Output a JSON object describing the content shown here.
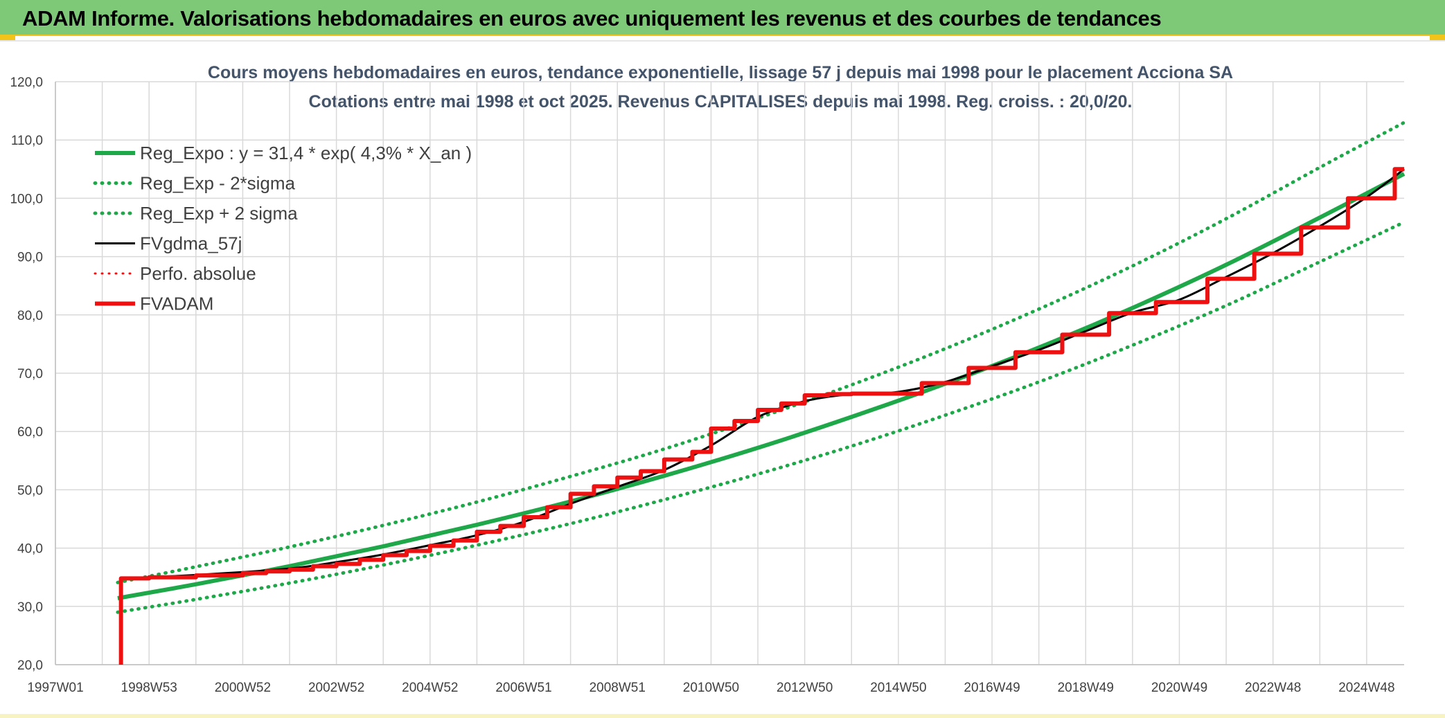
{
  "header": {
    "title": "ADAM Informe. Valorisations hebdomadaires en euros avec uniquement les revenus et des courbes de tendances"
  },
  "theme": {
    "banner": "#7ec978",
    "accent": "#f2c318",
    "green": "#1fa84a",
    "red": "#ee1111",
    "black": "#000000",
    "grid": "#d9d9d9"
  },
  "chart_data": {
    "type": "line",
    "title": "Cours moyens hebdomadaires en euros, tendance exponentielle, lissage 57 j depuis mai 1998 pour le placement Acciona SA",
    "subtitle": "Cotations entre mai 1998 et oct 2025. Revenus CAPITALISES depuis mai 1998. Reg. croiss. : 20,0/20.",
    "xlabel": "",
    "ylabel": "",
    "ylim": [
      20,
      120
    ],
    "yticks": [
      "20,0",
      "30,0",
      "40,0",
      "50,0",
      "60,0",
      "70,0",
      "80,0",
      "90,0",
      "100,0",
      "110,0",
      "120,0"
    ],
    "xlim": [
      1997.0,
      2025.8
    ],
    "xticks": [
      {
        "label": "1997W01",
        "x": 1997.0
      },
      {
        "label": "1998W53",
        "x": 1999.0
      },
      {
        "label": "2000W52",
        "x": 2001.0
      },
      {
        "label": "2002W52",
        "x": 2003.0
      },
      {
        "label": "2004W52",
        "x": 2005.0
      },
      {
        "label": "2006W51",
        "x": 2007.0
      },
      {
        "label": "2008W51",
        "x": 2009.0
      },
      {
        "label": "2010W50",
        "x": 2011.0
      },
      {
        "label": "2012W50",
        "x": 2013.0
      },
      {
        "label": "2014W50",
        "x": 2015.0
      },
      {
        "label": "2016W49",
        "x": 2017.0
      },
      {
        "label": "2018W49",
        "x": 2019.0
      },
      {
        "label": "2020W49",
        "x": 2021.0
      },
      {
        "label": "2022W48",
        "x": 2023.0
      },
      {
        "label": "2024W48",
        "x": 2025.0
      }
    ],
    "grid": true,
    "legend_position": "top-left",
    "series": [
      {
        "name": "Reg_Expo : y = 31,4 * exp( 4,3% *  X_an )",
        "style": "solid",
        "color": "#1fa84a",
        "width": 6,
        "x": [
          1998.33,
          2000.0,
          2002.0,
          2004.0,
          2006.0,
          2008.0,
          2010.0,
          2012.0,
          2014.0,
          2016.0,
          2018.0,
          2020.0,
          2022.0,
          2024.0,
          2025.8
        ],
        "y": [
          31.4,
          33.8,
          36.9,
          40.3,
          44.0,
          48.0,
          52.4,
          57.2,
          62.5,
          68.2,
          74.4,
          81.2,
          88.6,
          96.7,
          104.2
        ]
      },
      {
        "name": "Reg_Exp - 2*sigma",
        "style": "dotted",
        "color": "#1fa84a",
        "width": 5,
        "x": [
          1998.33,
          2000.0,
          2002.0,
          2004.0,
          2006.0,
          2008.0,
          2010.0,
          2012.0,
          2014.0,
          2016.0,
          2018.0,
          2020.0,
          2022.0,
          2024.0,
          2025.8
        ],
        "y": [
          29.0,
          31.2,
          34.0,
          37.1,
          40.5,
          44.2,
          48.3,
          52.7,
          57.5,
          62.8,
          68.5,
          74.8,
          81.6,
          89.1,
          95.9
        ]
      },
      {
        "name": "Reg_Exp + 2 sigma",
        "style": "dotted",
        "color": "#1fa84a",
        "width": 5,
        "x": [
          1998.33,
          2000.0,
          2002.0,
          2004.0,
          2006.0,
          2008.0,
          2010.0,
          2012.0,
          2014.0,
          2016.0,
          2018.0,
          2020.0,
          2022.0,
          2024.0,
          2025.8
        ],
        "y": [
          34.1,
          36.8,
          40.2,
          43.9,
          47.9,
          52.3,
          57.0,
          62.3,
          68.0,
          74.2,
          81.0,
          88.4,
          96.5,
          105.3,
          113.0
        ]
      },
      {
        "name": "FVgdma_57j",
        "style": "solid",
        "color": "#000000",
        "width": 3,
        "x": [
          1998.4,
          2000.0,
          2002.0,
          2003.0,
          2004.0,
          2005.0,
          2006.0,
          2007.0,
          2008.0,
          2009.0,
          2010.0,
          2011.0,
          2012.0,
          2013.0,
          2014.0,
          2015.0,
          2016.0,
          2017.0,
          2018.0,
          2019.0,
          2020.0,
          2021.0,
          2022.0,
          2023.0,
          2024.0,
          2025.0,
          2025.8
        ],
        "y": [
          34.8,
          35.4,
          36.5,
          37.6,
          38.9,
          40.5,
          42.2,
          44.5,
          47.6,
          50.5,
          53.4,
          57.6,
          62.5,
          65.2,
          66.4,
          66.8,
          68.5,
          71.2,
          74.0,
          77.2,
          80.4,
          82.6,
          86.5,
          90.6,
          95.2,
          100.2,
          105.0
        ]
      },
      {
        "name": "Perfo. absolue",
        "style": "dotted",
        "color": "#ee1111",
        "width": 3,
        "x": [],
        "y": []
      },
      {
        "name": "FVADAM",
        "style": "step",
        "color": "#ee1111",
        "width": 6,
        "x": [
          1998.4,
          1998.4,
          1999.0,
          2000.0,
          2001.0,
          2001.5,
          2002.0,
          2002.5,
          2003.0,
          2003.5,
          2004.0,
          2004.5,
          2005.0,
          2005.5,
          2006.0,
          2006.5,
          2007.0,
          2007.5,
          2008.0,
          2008.5,
          2009.0,
          2009.5,
          2010.0,
          2010.6,
          2011.0,
          2011.5,
          2012.0,
          2012.5,
          2013.0,
          2013.5,
          2014.0,
          2015.5,
          2016.5,
          2017.5,
          2018.5,
          2019.5,
          2020.5,
          2021.6,
          2022.6,
          2023.6,
          2024.6,
          2025.6,
          2025.8
        ],
        "y": [
          20.0,
          34.8,
          35.0,
          35.3,
          35.7,
          36.0,
          36.3,
          36.9,
          37.3,
          38.0,
          38.8,
          39.5,
          40.4,
          41.3,
          42.8,
          43.8,
          45.3,
          47.0,
          49.3,
          50.6,
          52.1,
          53.2,
          55.2,
          56.5,
          60.5,
          61.8,
          63.7,
          64.8,
          66.2,
          66.4,
          66.5,
          68.3,
          70.9,
          73.6,
          76.6,
          80.3,
          82.2,
          86.2,
          90.5,
          95.0,
          100.0,
          105.0,
          105.0
        ]
      }
    ]
  }
}
